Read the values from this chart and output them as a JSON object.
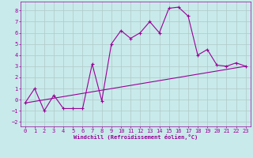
{
  "xlabel": "Windchill (Refroidissement éolien,°C)",
  "background_color": "#c8eaea",
  "grid_color": "#b0c8c8",
  "line_color": "#990099",
  "xlim": [
    -0.5,
    23.5
  ],
  "ylim": [
    -2.4,
    8.8
  ],
  "xticks": [
    0,
    1,
    2,
    3,
    4,
    5,
    6,
    7,
    8,
    9,
    10,
    11,
    12,
    13,
    14,
    15,
    16,
    17,
    18,
    19,
    20,
    21,
    22,
    23
  ],
  "yticks": [
    -2,
    -1,
    0,
    1,
    2,
    3,
    4,
    5,
    6,
    7,
    8
  ],
  "curve_x": [
    0,
    1,
    2,
    3,
    4,
    5,
    6,
    7,
    8,
    9,
    10,
    11,
    12,
    13,
    14,
    15,
    16,
    17,
    18,
    19,
    20,
    21,
    22,
    23
  ],
  "curve_y": [
    -0.3,
    1.0,
    -1.0,
    0.4,
    -0.8,
    -0.8,
    -0.8,
    3.2,
    -0.1,
    5.0,
    6.2,
    5.5,
    6.0,
    7.0,
    6.0,
    8.2,
    8.3,
    7.5,
    4.0,
    4.5,
    3.1,
    3.0,
    3.3,
    3.0
  ],
  "line_x": [
    0,
    23
  ],
  "line_y": [
    -0.3,
    3.0
  ],
  "marker": "+"
}
